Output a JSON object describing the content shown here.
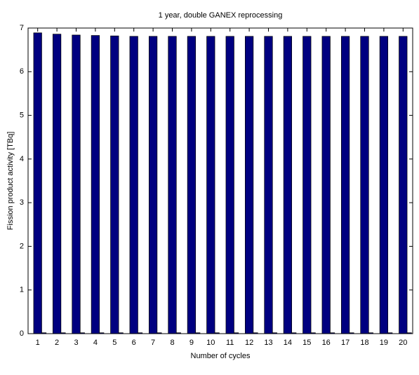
{
  "chart_data": {
    "type": "bar",
    "title": "1 year, double GANEX reprocessing",
    "x_label": "Number of cycles",
    "y_label": "Fission product activity [TBq]",
    "categories": [
      "1",
      "2",
      "3",
      "4",
      "5",
      "6",
      "7",
      "8",
      "9",
      "10",
      "11",
      "12",
      "13",
      "14",
      "15",
      "16",
      "17",
      "18",
      "19",
      "20"
    ],
    "series": [
      {
        "color": "#000080",
        "values": [
          6.89,
          6.86,
          6.84,
          6.83,
          6.82,
          6.81,
          6.81,
          6.81,
          6.81,
          6.81,
          6.81,
          6.81,
          6.81,
          6.81,
          6.81,
          6.81,
          6.81,
          6.81,
          6.81,
          6.81
        ]
      },
      {
        "color": "#000080",
        "values": [
          0.02,
          0.02,
          0.02,
          0.02,
          0.02,
          0.02,
          0.02,
          0.02,
          0.02,
          0.02,
          0.02,
          0.02,
          0.02,
          0.02,
          0.02,
          0.02,
          0.02,
          0.02,
          0.02,
          0.02
        ]
      }
    ],
    "ylim": [
      0,
      7
    ],
    "yticks": [
      0,
      1,
      2,
      3,
      4,
      5,
      6,
      7
    ]
  }
}
